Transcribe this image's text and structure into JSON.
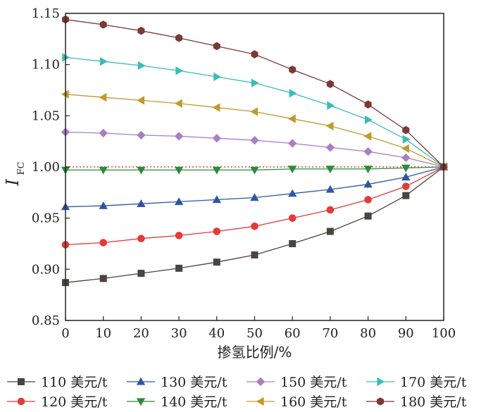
{
  "chart_data": {
    "type": "line",
    "title": "",
    "xlabel": "掺氢比例/%",
    "ylabel_main": "I",
    "ylabel_sub": "FC",
    "xlim": [
      0,
      100
    ],
    "ylim": [
      0.85,
      1.15
    ],
    "x_ticks": [
      "0",
      "10",
      "20",
      "30",
      "40",
      "50",
      "60",
      "70",
      "80",
      "90",
      "100"
    ],
    "y_ticks": [
      "0.85",
      "0.90",
      "0.95",
      "1.00",
      "1.05",
      "1.10",
      "1.15"
    ],
    "x": [
      0,
      10,
      20,
      30,
      40,
      50,
      60,
      70,
      80,
      90,
      100
    ],
    "grid": false,
    "legend_position": "bottom",
    "reference_line": {
      "y": 1.0,
      "style": "dotted",
      "color": "#e8403a"
    },
    "series": [
      {
        "name": "110 美元/t",
        "marker": "square",
        "color": "#4a4440",
        "values": [
          0.887,
          0.891,
          0.896,
          0.901,
          0.907,
          0.914,
          0.925,
          0.937,
          0.952,
          0.972,
          1.0
        ]
      },
      {
        "name": "120 美元/t",
        "marker": "circle",
        "color": "#e23b3b",
        "values": [
          0.924,
          0.926,
          0.93,
          0.933,
          0.937,
          0.942,
          0.95,
          0.958,
          0.968,
          0.981,
          1.0
        ]
      },
      {
        "name": "130 美元/t",
        "marker": "triangle-up",
        "color": "#2f56a6",
        "values": [
          0.961,
          0.962,
          0.964,
          0.966,
          0.968,
          0.97,
          0.974,
          0.978,
          0.983,
          0.99,
          1.0
        ]
      },
      {
        "name": "140 美元/t",
        "marker": "triangle-down",
        "color": "#2e8b3a",
        "values": [
          0.997,
          0.997,
          0.997,
          0.997,
          0.997,
          0.997,
          0.998,
          0.998,
          0.998,
          0.999,
          1.0
        ]
      },
      {
        "name": "150 美元/t",
        "marker": "diamond",
        "color": "#a97fc4",
        "values": [
          1.034,
          1.033,
          1.031,
          1.03,
          1.028,
          1.026,
          1.023,
          1.019,
          1.015,
          1.009,
          1.0
        ]
      },
      {
        "name": "160 美元/t",
        "marker": "triangle-left",
        "color": "#c19a2e",
        "values": [
          1.071,
          1.068,
          1.065,
          1.062,
          1.058,
          1.054,
          1.047,
          1.04,
          1.03,
          1.018,
          1.0
        ]
      },
      {
        "name": "170 美元/t",
        "marker": "triangle-right",
        "color": "#3dbcb4",
        "values": [
          1.107,
          1.103,
          1.099,
          1.094,
          1.088,
          1.082,
          1.072,
          1.06,
          1.046,
          1.027,
          1.0
        ]
      },
      {
        "name": "180 美元/t",
        "marker": "hexagon",
        "color": "#7a3a35",
        "values": [
          1.144,
          1.139,
          1.133,
          1.126,
          1.118,
          1.11,
          1.095,
          1.081,
          1.061,
          1.036,
          1.0
        ]
      }
    ]
  }
}
